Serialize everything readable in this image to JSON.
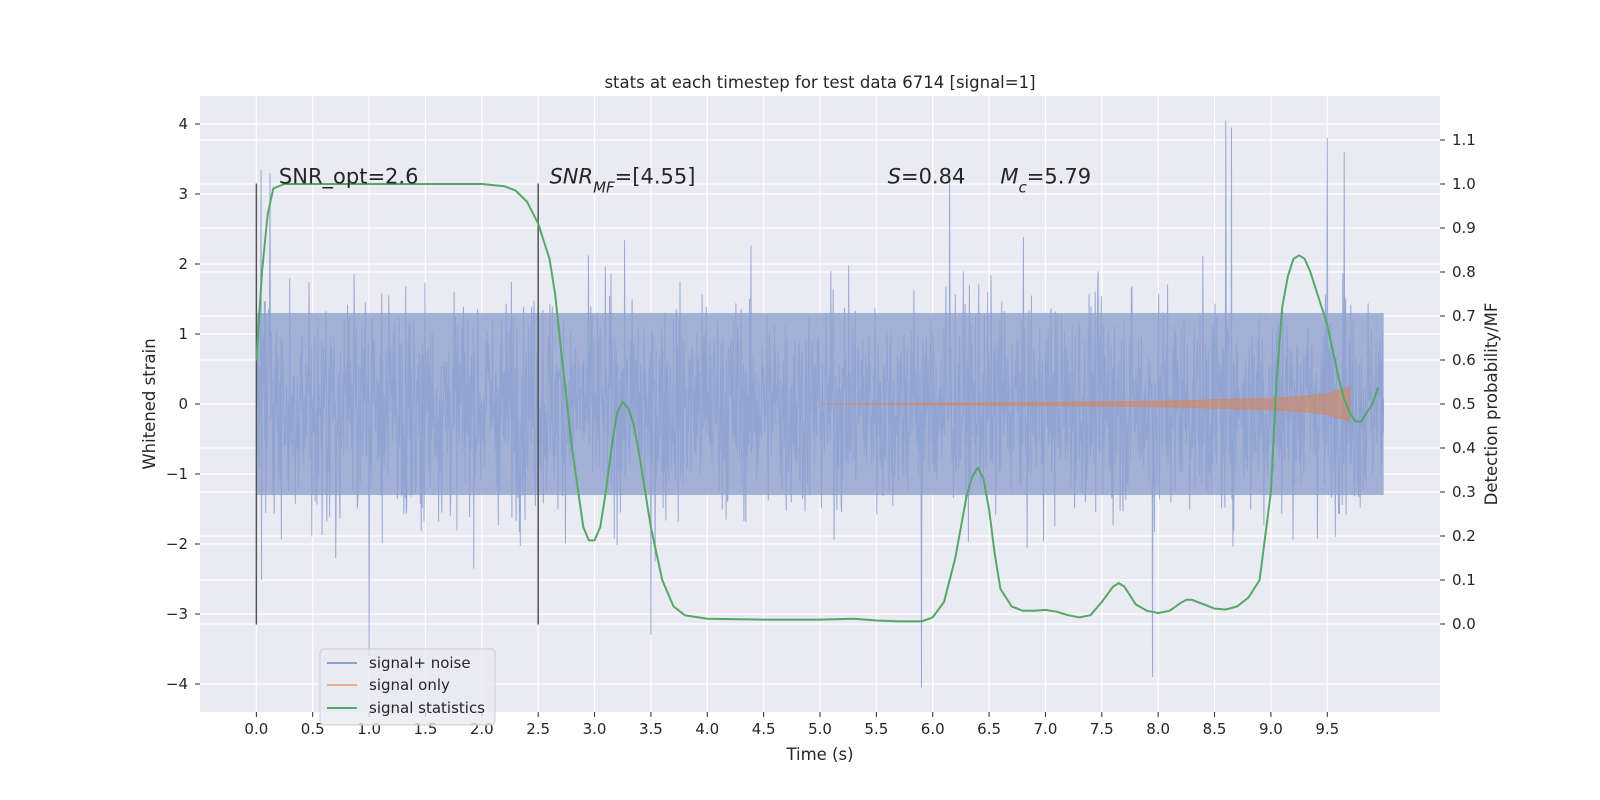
{
  "chart_data": {
    "type": "line",
    "title": "stats at each timestep for test data 6714 [signal=1]",
    "xlabel": "Time (s)",
    "ylabel": "Whitened strain",
    "ylabel_right": "Detection probability/MF",
    "xlim": [
      -0.5,
      10.5
    ],
    "ylim_left": [
      -4.4,
      4.4
    ],
    "ylim_right": [
      -0.2,
      1.2
    ],
    "xticks": [
      0.0,
      0.5,
      1.0,
      1.5,
      2.0,
      2.5,
      3.0,
      3.5,
      4.0,
      4.5,
      5.0,
      5.5,
      6.0,
      6.5,
      7.0,
      7.5,
      8.0,
      8.5,
      9.0,
      9.5
    ],
    "xtick_labels": [
      "0.0",
      "0.5",
      "1.0",
      "1.5",
      "2.0",
      "2.5",
      "3.0",
      "3.5",
      "4.0",
      "4.5",
      "5.0",
      "5.5",
      "6.0",
      "6.5",
      "7.0",
      "7.5",
      "8.0",
      "8.5",
      "9.0",
      "9.5"
    ],
    "yticks_left": [
      -4,
      -3,
      -2,
      -1,
      0,
      1,
      2,
      3,
      4
    ],
    "ytick_labels_left": [
      "−4",
      "−3",
      "−2",
      "−1",
      "0",
      "1",
      "2",
      "3",
      "4"
    ],
    "yticks_right": [
      0.0,
      0.1,
      0.2,
      0.3,
      0.4,
      0.5,
      0.6,
      0.7,
      0.8,
      0.9,
      1.0,
      1.1
    ],
    "ytick_labels_right": [
      "0.0",
      "0.1",
      "0.2",
      "0.3",
      "0.4",
      "0.5",
      "0.6",
      "0.7",
      "0.8",
      "0.9",
      "1.0",
      "1.1"
    ],
    "grid": true,
    "legend_position": "lower-left",
    "annotations": [
      {
        "x": 0.2,
        "y": 3.15,
        "text": "SNR_opt=2.6"
      },
      {
        "x": 2.6,
        "y": 3.15,
        "text": "SNR_MF=[4.55]"
      },
      {
        "x": 5.6,
        "y": 3.15,
        "text": "S=0.84"
      },
      {
        "x": 6.6,
        "y": 3.15,
        "text": "M_c=5.79"
      }
    ],
    "vertical_markers": [
      {
        "x": 0.0,
        "y_range": [
          -3.15,
          3.15
        ]
      },
      {
        "x": 2.5,
        "y_range": [
          -3.15,
          3.15
        ]
      }
    ],
    "series": [
      {
        "name": "signal+ noise",
        "color": "#8ea2d0",
        "axis": "left",
        "t_range": [
          0.0,
          10.0
        ],
        "typical_amplitude": 1.3,
        "spikes": [
          [
            0.04,
            3.35
          ],
          [
            0.12,
            3.3
          ],
          [
            1.0,
            -3.6
          ],
          [
            5.9,
            -4.05
          ],
          [
            6.15,
            3.3
          ],
          [
            8.6,
            4.05
          ],
          [
            8.65,
            3.95
          ],
          [
            9.5,
            3.8
          ],
          [
            9.65,
            3.6
          ],
          [
            3.5,
            -3.3
          ],
          [
            7.95,
            -3.9
          ]
        ]
      },
      {
        "name": "signal only",
        "color": "#dd8452",
        "axis": "left",
        "t_range": [
          5.0,
          9.7
        ],
        "envelope_t": [
          5.0,
          6.0,
          7.0,
          8.0,
          8.5,
          9.0,
          9.3,
          9.5,
          9.6,
          9.7
        ],
        "envelope_amp": [
          0.0,
          0.01,
          0.02,
          0.04,
          0.06,
          0.08,
          0.11,
          0.15,
          0.2,
          0.24
        ]
      },
      {
        "name": "signal statistics",
        "color": "#55a868",
        "axis": "right",
        "x": [
          0.0,
          0.05,
          0.1,
          0.15,
          0.25,
          0.4,
          0.6,
          1.0,
          1.5,
          2.0,
          2.2,
          2.3,
          2.4,
          2.5,
          2.55,
          2.6,
          2.65,
          2.7,
          2.8,
          2.9,
          2.95,
          3.0,
          3.05,
          3.1,
          3.15,
          3.2,
          3.25,
          3.3,
          3.35,
          3.4,
          3.5,
          3.6,
          3.7,
          3.8,
          4.0,
          4.5,
          5.0,
          5.3,
          5.5,
          5.7,
          5.9,
          6.0,
          6.1,
          6.2,
          6.3,
          6.35,
          6.4,
          6.45,
          6.5,
          6.55,
          6.6,
          6.7,
          6.8,
          6.9,
          7.0,
          7.1,
          7.2,
          7.3,
          7.4,
          7.5,
          7.6,
          7.65,
          7.7,
          7.75,
          7.8,
          7.9,
          8.0,
          8.1,
          8.2,
          8.25,
          8.3,
          8.4,
          8.5,
          8.6,
          8.7,
          8.8,
          8.9,
          9.0,
          9.05,
          9.1,
          9.15,
          9.2,
          9.25,
          9.3,
          9.35,
          9.4,
          9.5,
          9.6,
          9.65,
          9.7,
          9.75,
          9.8,
          9.85,
          9.9,
          9.95
        ],
        "y": [
          0.6,
          0.8,
          0.93,
          0.99,
          1.0,
          1.0,
          1.0,
          1.0,
          1.0,
          1.0,
          0.995,
          0.985,
          0.96,
          0.91,
          0.87,
          0.83,
          0.75,
          0.63,
          0.4,
          0.22,
          0.19,
          0.19,
          0.22,
          0.3,
          0.4,
          0.48,
          0.505,
          0.49,
          0.45,
          0.38,
          0.22,
          0.1,
          0.04,
          0.02,
          0.012,
          0.01,
          0.01,
          0.012,
          0.008,
          0.006,
          0.006,
          0.015,
          0.05,
          0.15,
          0.29,
          0.335,
          0.355,
          0.33,
          0.26,
          0.16,
          0.08,
          0.04,
          0.03,
          0.03,
          0.032,
          0.028,
          0.02,
          0.015,
          0.02,
          0.05,
          0.085,
          0.093,
          0.085,
          0.065,
          0.045,
          0.03,
          0.025,
          0.03,
          0.048,
          0.055,
          0.055,
          0.045,
          0.035,
          0.033,
          0.04,
          0.06,
          0.1,
          0.3,
          0.55,
          0.72,
          0.79,
          0.83,
          0.838,
          0.83,
          0.8,
          0.76,
          0.68,
          0.56,
          0.51,
          0.48,
          0.46,
          0.46,
          0.48,
          0.5,
          0.537
        ]
      }
    ]
  }
}
